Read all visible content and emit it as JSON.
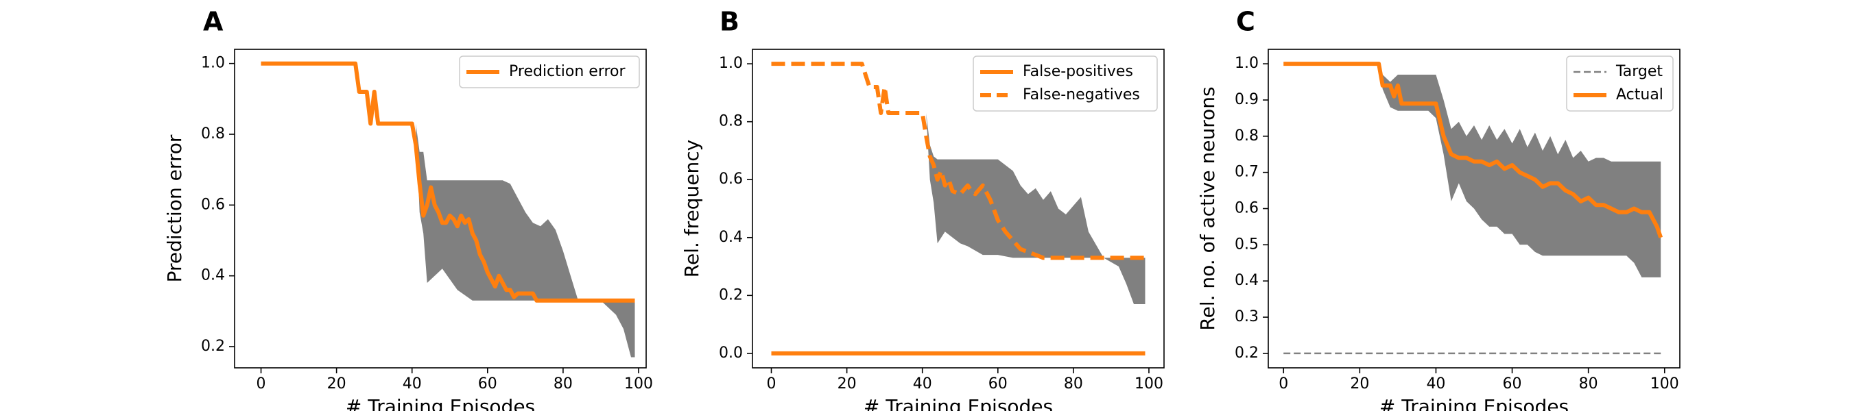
{
  "chart_data": [
    {
      "type": "line",
      "panel": "A",
      "title": "",
      "xlabel": "# Training Episodes",
      "ylabel": "Prediction error",
      "xlim": [
        -7,
        102
      ],
      "ylim": [
        0.14,
        1.04
      ],
      "xticks": [
        0,
        20,
        40,
        60,
        80,
        100
      ],
      "yticks": [
        0.2,
        0.4,
        0.6,
        0.8,
        1.0
      ],
      "xtick_labels": [
        "0",
        "20",
        "40",
        "60",
        "80",
        "100"
      ],
      "ytick_labels": [
        "0.2",
        "0.4",
        "0.6",
        "0.8",
        "1.0"
      ],
      "legend_position": "top-right",
      "band_color": "#808080",
      "band": {
        "x": [
          41,
          42,
          43,
          44,
          48,
          52,
          56,
          60,
          64,
          66,
          68,
          70,
          72,
          74,
          76,
          78,
          80,
          82,
          84,
          86,
          90,
          94,
          96,
          98,
          99
        ],
        "lower": [
          0.83,
          0.58,
          0.52,
          0.38,
          0.42,
          0.36,
          0.33,
          0.33,
          0.33,
          0.33,
          0.33,
          0.33,
          0.33,
          0.33,
          0.33,
          0.33,
          0.33,
          0.33,
          0.33,
          0.33,
          0.33,
          0.29,
          0.25,
          0.17,
          0.17
        ],
        "upper": [
          0.83,
          0.75,
          0.75,
          0.67,
          0.67,
          0.67,
          0.67,
          0.67,
          0.67,
          0.66,
          0.62,
          0.58,
          0.55,
          0.54,
          0.56,
          0.53,
          0.47,
          0.4,
          0.33,
          0.33,
          0.33,
          0.33,
          0.33,
          0.33,
          0.33
        ]
      },
      "series": [
        {
          "name": "Prediction error",
          "color": "#ff7f0e",
          "style": "solid",
          "x": [
            0,
            25,
            26,
            28,
            29,
            30,
            31,
            32,
            40,
            41,
            42,
            43,
            44,
            45,
            46,
            47,
            48,
            49,
            50,
            51,
            52,
            53,
            54,
            55,
            56,
            57,
            58,
            59,
            60,
            61,
            62,
            63,
            64,
            65,
            66,
            67,
            68,
            69,
            70,
            72,
            73,
            74,
            99
          ],
          "y": [
            1.0,
            1.0,
            0.92,
            0.92,
            0.83,
            0.92,
            0.83,
            0.83,
            0.83,
            0.77,
            0.66,
            0.57,
            0.6,
            0.65,
            0.6,
            0.58,
            0.55,
            0.55,
            0.57,
            0.56,
            0.54,
            0.57,
            0.55,
            0.56,
            0.52,
            0.5,
            0.46,
            0.44,
            0.41,
            0.39,
            0.37,
            0.4,
            0.38,
            0.36,
            0.36,
            0.34,
            0.35,
            0.35,
            0.35,
            0.35,
            0.33,
            0.33,
            0.33
          ]
        }
      ]
    },
    {
      "type": "line",
      "panel": "B",
      "title": "",
      "xlabel": "# Training Episodes",
      "ylabel": "Rel. frequency",
      "xlim": [
        -5,
        104
      ],
      "ylim": [
        -0.05,
        1.05
      ],
      "xticks": [
        0,
        20,
        40,
        60,
        80,
        100
      ],
      "yticks": [
        0.0,
        0.2,
        0.4,
        0.6,
        0.8,
        1.0
      ],
      "xtick_labels": [
        "0",
        "20",
        "40",
        "60",
        "80",
        "100"
      ],
      "ytick_labels": [
        "0.0",
        "0.2",
        "0.4",
        "0.6",
        "0.8",
        "1.0"
      ],
      "legend_position": "top-right",
      "band_color": "#808080",
      "band": {
        "x": [
          41,
          42,
          43,
          44,
          46,
          48,
          50,
          52,
          56,
          60,
          64,
          66,
          68,
          70,
          72,
          74,
          76,
          78,
          80,
          82,
          84,
          88,
          92,
          94,
          96,
          98,
          99
        ],
        "lower": [
          0.83,
          0.6,
          0.52,
          0.38,
          0.42,
          0.4,
          0.38,
          0.37,
          0.34,
          0.34,
          0.33,
          0.33,
          0.33,
          0.33,
          0.33,
          0.33,
          0.33,
          0.33,
          0.33,
          0.33,
          0.33,
          0.33,
          0.3,
          0.24,
          0.17,
          0.17,
          0.17
        ],
        "upper": [
          0.83,
          0.72,
          0.68,
          0.67,
          0.67,
          0.67,
          0.67,
          0.67,
          0.67,
          0.67,
          0.63,
          0.58,
          0.55,
          0.57,
          0.53,
          0.56,
          0.5,
          0.48,
          0.51,
          0.54,
          0.42,
          0.33,
          0.33,
          0.33,
          0.33,
          0.33,
          0.33
        ]
      },
      "series": [
        {
          "name": "False-positives",
          "color": "#ff7f0e",
          "style": "solid",
          "x": [
            0,
            99
          ],
          "y": [
            0.0,
            0.0
          ]
        },
        {
          "name": "False-negatives",
          "color": "#ff7f0e",
          "style": "dashed",
          "x": [
            0,
            24,
            26,
            28,
            29,
            30,
            31,
            32,
            40,
            41,
            42,
            43,
            44,
            45,
            46,
            47,
            48,
            50,
            52,
            53,
            54,
            56,
            58,
            60,
            62,
            64,
            66,
            68,
            70,
            72,
            80,
            90,
            99
          ],
          "y": [
            1.0,
            1.0,
            0.92,
            0.92,
            0.83,
            0.92,
            0.83,
            0.83,
            0.83,
            0.75,
            0.68,
            0.65,
            0.6,
            0.63,
            0.58,
            0.6,
            0.56,
            0.55,
            0.58,
            0.56,
            0.55,
            0.58,
            0.53,
            0.46,
            0.42,
            0.39,
            0.36,
            0.35,
            0.34,
            0.33,
            0.33,
            0.33,
            0.33
          ]
        }
      ]
    },
    {
      "type": "line",
      "panel": "C",
      "title": "",
      "xlabel": "# Training Episodes",
      "ylabel": "Rel. no. of active neurons",
      "xlim": [
        -4,
        104
      ],
      "ylim": [
        0.16,
        1.04
      ],
      "xticks": [
        0,
        20,
        40,
        60,
        80,
        100
      ],
      "yticks": [
        0.2,
        0.3,
        0.4,
        0.5,
        0.6,
        0.7,
        0.8,
        0.9,
        1.0
      ],
      "xtick_labels": [
        "0",
        "20",
        "40",
        "60",
        "80",
        "100"
      ],
      "ytick_labels": [
        "0.2",
        "0.3",
        "0.4",
        "0.5",
        "0.6",
        "0.7",
        "0.8",
        "0.9",
        "1.0"
      ],
      "legend_position": "top-right",
      "band_color": "#808080",
      "band": {
        "x": [
          25,
          26,
          28,
          30,
          34,
          38,
          40,
          42,
          44,
          46,
          48,
          50,
          52,
          54,
          56,
          58,
          60,
          62,
          64,
          66,
          68,
          70,
          72,
          74,
          76,
          78,
          80,
          82,
          84,
          86,
          88,
          90,
          92,
          94,
          96,
          98,
          99
        ],
        "lower": [
          1.0,
          0.93,
          0.88,
          0.87,
          0.87,
          0.87,
          0.85,
          0.75,
          0.62,
          0.67,
          0.62,
          0.6,
          0.57,
          0.55,
          0.55,
          0.53,
          0.53,
          0.5,
          0.5,
          0.48,
          0.47,
          0.47,
          0.47,
          0.47,
          0.47,
          0.47,
          0.47,
          0.47,
          0.47,
          0.47,
          0.47,
          0.47,
          0.45,
          0.41,
          0.41,
          0.41,
          0.41
        ],
        "upper": [
          1.0,
          0.97,
          0.95,
          0.97,
          0.97,
          0.97,
          0.97,
          0.9,
          0.82,
          0.84,
          0.8,
          0.83,
          0.79,
          0.83,
          0.79,
          0.82,
          0.78,
          0.82,
          0.77,
          0.81,
          0.76,
          0.8,
          0.75,
          0.79,
          0.74,
          0.76,
          0.73,
          0.74,
          0.74,
          0.73,
          0.73,
          0.73,
          0.73,
          0.73,
          0.73,
          0.73,
          0.73
        ]
      },
      "series": [
        {
          "name": "Target",
          "color": "#808080",
          "style": "dashed",
          "x": [
            0,
            99
          ],
          "y": [
            0.2,
            0.2
          ]
        },
        {
          "name": "Actual",
          "color": "#ff7f0e",
          "style": "solid",
          "x": [
            0,
            25,
            26,
            28,
            29,
            30,
            31,
            32,
            40,
            42,
            44,
            46,
            48,
            50,
            52,
            54,
            56,
            58,
            60,
            62,
            64,
            66,
            68,
            70,
            72,
            74,
            76,
            78,
            80,
            82,
            84,
            86,
            88,
            90,
            92,
            94,
            96,
            98,
            99
          ],
          "y": [
            1.0,
            1.0,
            0.94,
            0.94,
            0.91,
            0.94,
            0.89,
            0.89,
            0.89,
            0.8,
            0.75,
            0.74,
            0.74,
            0.73,
            0.73,
            0.72,
            0.73,
            0.71,
            0.72,
            0.7,
            0.69,
            0.68,
            0.66,
            0.67,
            0.67,
            0.65,
            0.64,
            0.62,
            0.63,
            0.61,
            0.61,
            0.6,
            0.59,
            0.59,
            0.6,
            0.59,
            0.59,
            0.55,
            0.52
          ]
        }
      ]
    }
  ]
}
